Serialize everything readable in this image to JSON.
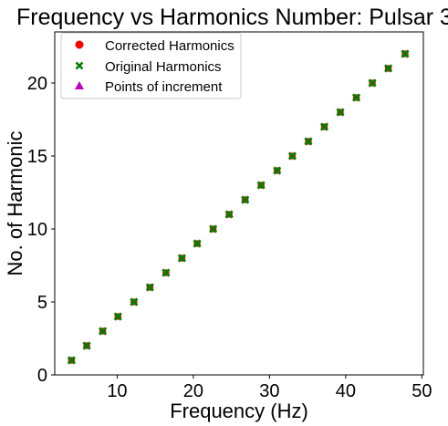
{
  "chart_data": {
    "type": "scatter",
    "title": "Frequency vs Harmonics Number: Pulsar 3",
    "xlabel": "Frequency (Hz)",
    "ylabel": "No. of Harmonic",
    "xlim": [
      1.8,
      50.2
    ],
    "ylim": [
      0,
      23.5
    ],
    "xticks": [
      10,
      20,
      30,
      40,
      50
    ],
    "yticks": [
      0,
      5,
      10,
      15,
      20
    ],
    "grid": false,
    "legend_position": "top-left",
    "series": [
      {
        "name": "Corrected Harmonics",
        "marker": "circle",
        "color": "#ff0000",
        "x": [
          4.0,
          6.0,
          8.1,
          10.1,
          12.2,
          14.3,
          16.4,
          18.5,
          20.5,
          22.6,
          24.7,
          26.8,
          28.9,
          31.0,
          33.0,
          35.1,
          37.2,
          39.3,
          41.4,
          43.5,
          45.6,
          47.8
        ],
        "y": [
          1,
          2,
          3,
          4,
          5,
          6,
          7,
          8,
          9,
          10,
          11,
          12,
          13,
          14,
          15,
          16,
          17,
          18,
          19,
          20,
          21,
          22
        ]
      },
      {
        "name": "Original Harmonics",
        "marker": "x",
        "color": "#008000",
        "x": [
          4.0,
          6.0,
          8.1,
          10.1,
          12.2,
          14.3,
          16.4,
          18.5,
          20.5,
          22.6,
          24.7,
          26.8,
          28.9,
          31.0,
          33.0,
          35.1,
          37.2,
          39.3,
          41.4,
          43.5,
          45.6,
          47.8
        ],
        "y": [
          1,
          2,
          3,
          4,
          5,
          6,
          7,
          8,
          9,
          10,
          11,
          12,
          13,
          14,
          15,
          16,
          17,
          18,
          19,
          20,
          21,
          22
        ]
      },
      {
        "name": "Points of increment",
        "marker": "triangle",
        "color": "#bf00bf",
        "x": [],
        "y": []
      }
    ]
  }
}
